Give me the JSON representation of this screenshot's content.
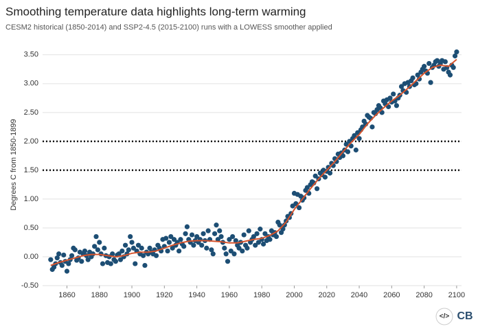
{
  "chart_data": {
    "type": "scatter",
    "title": "Smoothing temperature data highlights long-term warming",
    "subtitle": "CESM2 historical (1850-2014) and SSP2-4.5 (2015-2100) runs with a LOWESS smoother applied",
    "y_label": "Degrees C from 1850-1899",
    "source_logo": "CB",
    "embed_icon": "</>",
    "xlim": [
      1845,
      2103
    ],
    "ylim": [
      -0.5,
      3.7
    ],
    "xticks": [
      1860,
      1880,
      1900,
      1920,
      1940,
      1960,
      1980,
      2000,
      2020,
      2040,
      2060,
      2080,
      2100
    ],
    "yticks": [
      {
        "value": -0.5,
        "label": "-0.50"
      },
      {
        "value": 0,
        "label": "0.00"
      },
      {
        "value": 0.5,
        "label": "0.50"
      },
      {
        "value": 1,
        "label": "1.00"
      },
      {
        "value": 1.5,
        "label": "1.50"
      },
      {
        "value": 2,
        "label": "2.00"
      },
      {
        "value": 2.5,
        "label": "2.50"
      },
      {
        "value": 3,
        "label": "3.00"
      },
      {
        "value": 3.5,
        "label": "3.50"
      }
    ],
    "grid": true,
    "reference_lines": [
      2.0,
      1.5
    ],
    "reference_line_color": "#111111",
    "series": [
      {
        "kind": "points",
        "color": "#1d4e74",
        "x": [
          1850,
          1851,
          1852,
          1853,
          1854,
          1855,
          1856,
          1857,
          1858,
          1859,
          1860,
          1861,
          1862,
          1863,
          1864,
          1865,
          1866,
          1867,
          1868,
          1869,
          1870,
          1871,
          1872,
          1873,
          1874,
          1875,
          1876,
          1877,
          1878,
          1879,
          1880,
          1881,
          1882,
          1883,
          1884,
          1885,
          1886,
          1887,
          1888,
          1889,
          1890,
          1891,
          1892,
          1893,
          1894,
          1895,
          1896,
          1897,
          1898,
          1899,
          1900,
          1901,
          1902,
          1903,
          1904,
          1905,
          1906,
          1907,
          1908,
          1909,
          1910,
          1911,
          1912,
          1913,
          1914,
          1915,
          1916,
          1917,
          1918,
          1919,
          1920,
          1921,
          1922,
          1923,
          1924,
          1925,
          1926,
          1927,
          1928,
          1929,
          1930,
          1931,
          1932,
          1933,
          1934,
          1935,
          1936,
          1937,
          1938,
          1939,
          1940,
          1941,
          1942,
          1943,
          1944,
          1945,
          1946,
          1947,
          1948,
          1949,
          1950,
          1951,
          1952,
          1953,
          1954,
          1955,
          1956,
          1957,
          1958,
          1959,
          1960,
          1961,
          1962,
          1963,
          1964,
          1965,
          1966,
          1967,
          1968,
          1969,
          1970,
          1971,
          1972,
          1973,
          1974,
          1975,
          1976,
          1977,
          1978,
          1979,
          1980,
          1981,
          1982,
          1983,
          1984,
          1985,
          1986,
          1987,
          1988,
          1989,
          1990,
          1991,
          1992,
          1993,
          1994,
          1995,
          1996,
          1997,
          1998,
          1999,
          2000,
          2001,
          2002,
          2003,
          2004,
          2005,
          2006,
          2007,
          2008,
          2009,
          2010,
          2011,
          2012,
          2013,
          2014,
          2015,
          2016,
          2017,
          2018,
          2019,
          2020,
          2021,
          2022,
          2023,
          2024,
          2025,
          2026,
          2027,
          2028,
          2029,
          2030,
          2031,
          2032,
          2033,
          2034,
          2035,
          2036,
          2037,
          2038,
          2039,
          2040,
          2041,
          2042,
          2043,
          2044,
          2045,
          2046,
          2047,
          2048,
          2049,
          2050,
          2051,
          2052,
          2053,
          2054,
          2055,
          2056,
          2057,
          2058,
          2059,
          2060,
          2061,
          2062,
          2063,
          2064,
          2065,
          2066,
          2067,
          2068,
          2069,
          2070,
          2071,
          2072,
          2073,
          2074,
          2075,
          2076,
          2077,
          2078,
          2079,
          2080,
          2081,
          2082,
          2083,
          2084,
          2085,
          2086,
          2087,
          2088,
          2089,
          2090,
          2091,
          2092,
          2093,
          2094,
          2095,
          2096,
          2097,
          2098,
          2099,
          2100
        ],
        "values": [
          -0.05,
          -0.22,
          -0.18,
          -0.12,
          -0.02,
          0.05,
          -0.1,
          -0.15,
          0.03,
          -0.08,
          -0.25,
          -0.12,
          -0.05,
          0.02,
          0.15,
          0.12,
          -0.06,
          -0.02,
          0.08,
          -0.08,
          0.05,
          0.1,
          0.02,
          -0.05,
          0.08,
          0.0,
          0.05,
          0.18,
          0.35,
          0.12,
          0.25,
          0.05,
          -0.12,
          0.15,
          0.02,
          -0.1,
          0.0,
          -0.12,
          0.05,
          -0.05,
          -0.08,
          0.03,
          0.05,
          -0.05,
          0.1,
          0.0,
          0.2,
          0.05,
          0.12,
          0.35,
          0.25,
          0.15,
          -0.12,
          0.1,
          0.2,
          0.05,
          0.15,
          0.02,
          -0.15,
          0.08,
          0.05,
          0.15,
          0.08,
          0.05,
          0.12,
          0.02,
          0.2,
          0.15,
          0.1,
          0.3,
          0.18,
          0.32,
          0.1,
          0.25,
          0.35,
          0.15,
          0.3,
          0.2,
          0.25,
          0.1,
          0.3,
          0.22,
          0.18,
          0.4,
          0.52,
          0.3,
          0.25,
          0.38,
          0.2,
          0.28,
          0.35,
          0.25,
          0.3,
          0.2,
          0.4,
          0.28,
          0.15,
          0.45,
          0.3,
          0.12,
          0.05,
          0.4,
          0.55,
          0.3,
          0.45,
          0.35,
          0.25,
          0.15,
          0.05,
          -0.08,
          0.3,
          0.1,
          0.35,
          0.05,
          0.28,
          0.2,
          0.15,
          0.25,
          0.1,
          0.38,
          0.2,
          0.15,
          0.45,
          0.25,
          0.3,
          0.35,
          0.2,
          0.4,
          0.25,
          0.48,
          0.3,
          0.22,
          0.4,
          0.28,
          0.35,
          0.3,
          0.45,
          0.38,
          0.42,
          0.35,
          0.6,
          0.55,
          0.42,
          0.48,
          0.55,
          0.62,
          0.7,
          0.68,
          0.75,
          0.88,
          1.1,
          0.92,
          1.08,
          0.85,
          1.05,
          0.98,
          1.02,
          1.15,
          1.2,
          1.1,
          1.25,
          1.3,
          1.28,
          1.4,
          1.18,
          1.35,
          1.45,
          1.42,
          1.5,
          1.38,
          1.48,
          1.55,
          1.45,
          1.62,
          1.58,
          1.7,
          1.65,
          1.78,
          1.72,
          1.8,
          1.75,
          1.85,
          1.95,
          1.82,
          2.0,
          1.92,
          2.05,
          2.1,
          1.85,
          2.15,
          2.05,
          2.2,
          2.25,
          2.35,
          2.3,
          2.45,
          2.42,
          2.4,
          2.25,
          2.5,
          2.48,
          2.55,
          2.62,
          2.58,
          2.5,
          2.7,
          2.65,
          2.72,
          2.6,
          2.75,
          2.68,
          2.82,
          2.7,
          2.62,
          2.75,
          2.8,
          2.95,
          2.88,
          3.0,
          2.85,
          3.02,
          2.95,
          3.05,
          3.1,
          2.98,
          3.0,
          3.15,
          3.08,
          3.2,
          3.25,
          3.3,
          3.22,
          3.18,
          3.35,
          3.02,
          3.28,
          3.32,
          3.38,
          3.4,
          3.3,
          3.35,
          3.4,
          3.25,
          3.38,
          3.28,
          3.2,
          3.15,
          3.32,
          3.28,
          3.48,
          3.55
        ]
      },
      {
        "kind": "line",
        "color": "#d6532c",
        "x": [
          1850,
          1855,
          1860,
          1865,
          1870,
          1875,
          1880,
          1885,
          1890,
          1895,
          1900,
          1905,
          1910,
          1915,
          1920,
          1925,
          1930,
          1935,
          1940,
          1945,
          1950,
          1955,
          1960,
          1965,
          1970,
          1975,
          1980,
          1985,
          1990,
          1995,
          2000,
          2005,
          2010,
          2015,
          2020,
          2025,
          2030,
          2035,
          2040,
          2045,
          2050,
          2055,
          2060,
          2065,
          2070,
          2075,
          2080,
          2085,
          2090,
          2095,
          2100
        ],
        "values": [
          -0.15,
          -0.1,
          -0.06,
          -0.02,
          0.02,
          0.04,
          0.04,
          0.02,
          0.0,
          0.02,
          0.06,
          0.08,
          0.08,
          0.1,
          0.15,
          0.2,
          0.24,
          0.27,
          0.28,
          0.28,
          0.27,
          0.26,
          0.24,
          0.24,
          0.27,
          0.3,
          0.32,
          0.37,
          0.45,
          0.6,
          0.82,
          1.0,
          1.18,
          1.35,
          1.5,
          1.65,
          1.82,
          1.98,
          2.12,
          2.3,
          2.45,
          2.58,
          2.7,
          2.8,
          2.92,
          3.05,
          3.18,
          3.28,
          3.32,
          3.3,
          3.42
        ]
      }
    ]
  }
}
